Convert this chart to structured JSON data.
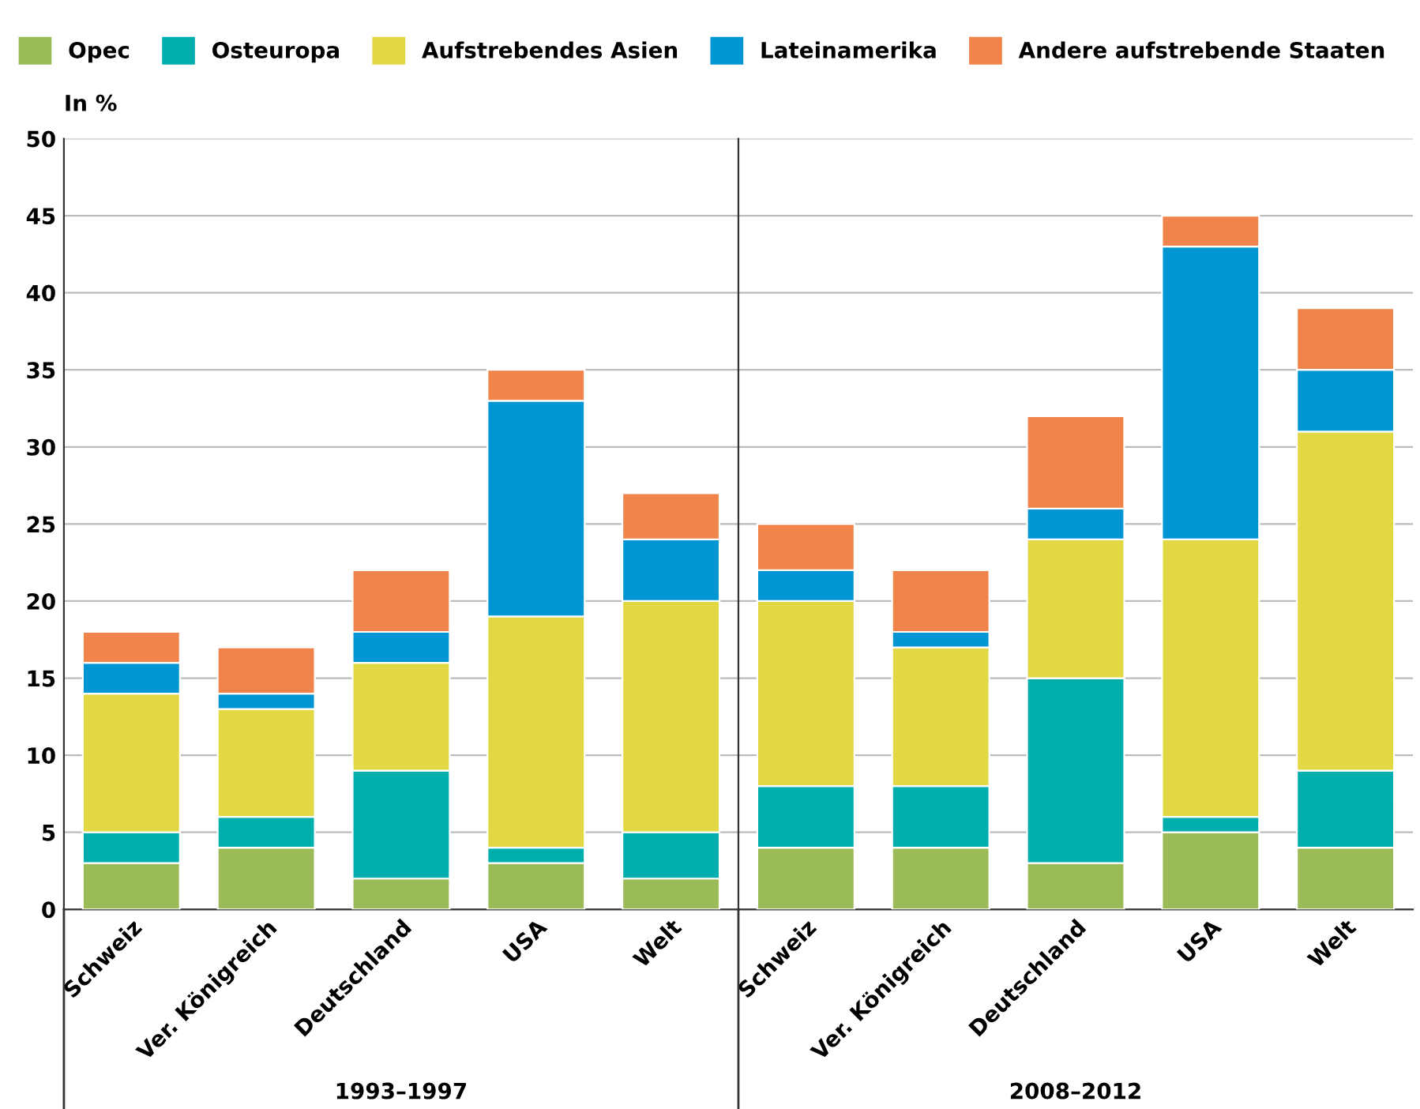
{
  "chart_data": [
    {
      "type": "bar",
      "stacked": true,
      "ylabel": "In %",
      "xlabel": "1993–1997",
      "categories": [
        "Schweiz",
        "Ver. Königreich",
        "Deutschland",
        "USA",
        "Welt"
      ],
      "series": [
        {
          "name": "Opec",
          "color": "#9bbb59",
          "values": [
            3,
            4,
            2,
            3,
            2
          ]
        },
        {
          "name": "Osteuropa",
          "color": "#00aeae",
          "values": [
            2,
            2,
            7,
            1,
            3
          ]
        },
        {
          "name": "Aufstrebendes Asien",
          "color": "#e2d843",
          "values": [
            9,
            7,
            7,
            15,
            15
          ]
        },
        {
          "name": "Lateinamerika",
          "color": "#0095d3",
          "values": [
            2,
            1,
            2,
            14,
            4
          ]
        },
        {
          "name": "Andere aufstrebende Staaten",
          "color": "#f0844a",
          "values": [
            2,
            3,
            4,
            2,
            3
          ]
        }
      ],
      "ylim": [
        0,
        50
      ],
      "yticks": [
        0,
        5,
        10,
        15,
        20,
        25,
        30,
        35,
        40,
        45,
        50
      ],
      "grid": "y",
      "legend": "top"
    },
    {
      "type": "bar",
      "stacked": true,
      "xlabel": "2008–2012",
      "categories": [
        "Schweiz",
        "Ver. Königreich",
        "Deutschland",
        "USA",
        "Welt"
      ],
      "series": [
        {
          "color": "#9bbb59",
          "values": [
            4,
            4,
            3,
            5,
            4
          ]
        },
        {
          "color": "#00aeae",
          "values": [
            4,
            4,
            12,
            1,
            5
          ]
        },
        {
          "color": "#e2d843",
          "values": [
            12,
            9,
            9,
            18,
            22
          ]
        },
        {
          "color": "#0095d3",
          "values": [
            2,
            1,
            2,
            19,
            4
          ]
        },
        {
          "color": "#f0844a",
          "values": [
            3,
            4,
            6,
            2,
            4
          ]
        }
      ],
      "ylim": [
        0,
        50
      ],
      "yticks": [
        0,
        5,
        10,
        15,
        20,
        25,
        30,
        35,
        40,
        45,
        50
      ],
      "grid": "y",
      "tick_labels": "x"
    }
  ]
}
